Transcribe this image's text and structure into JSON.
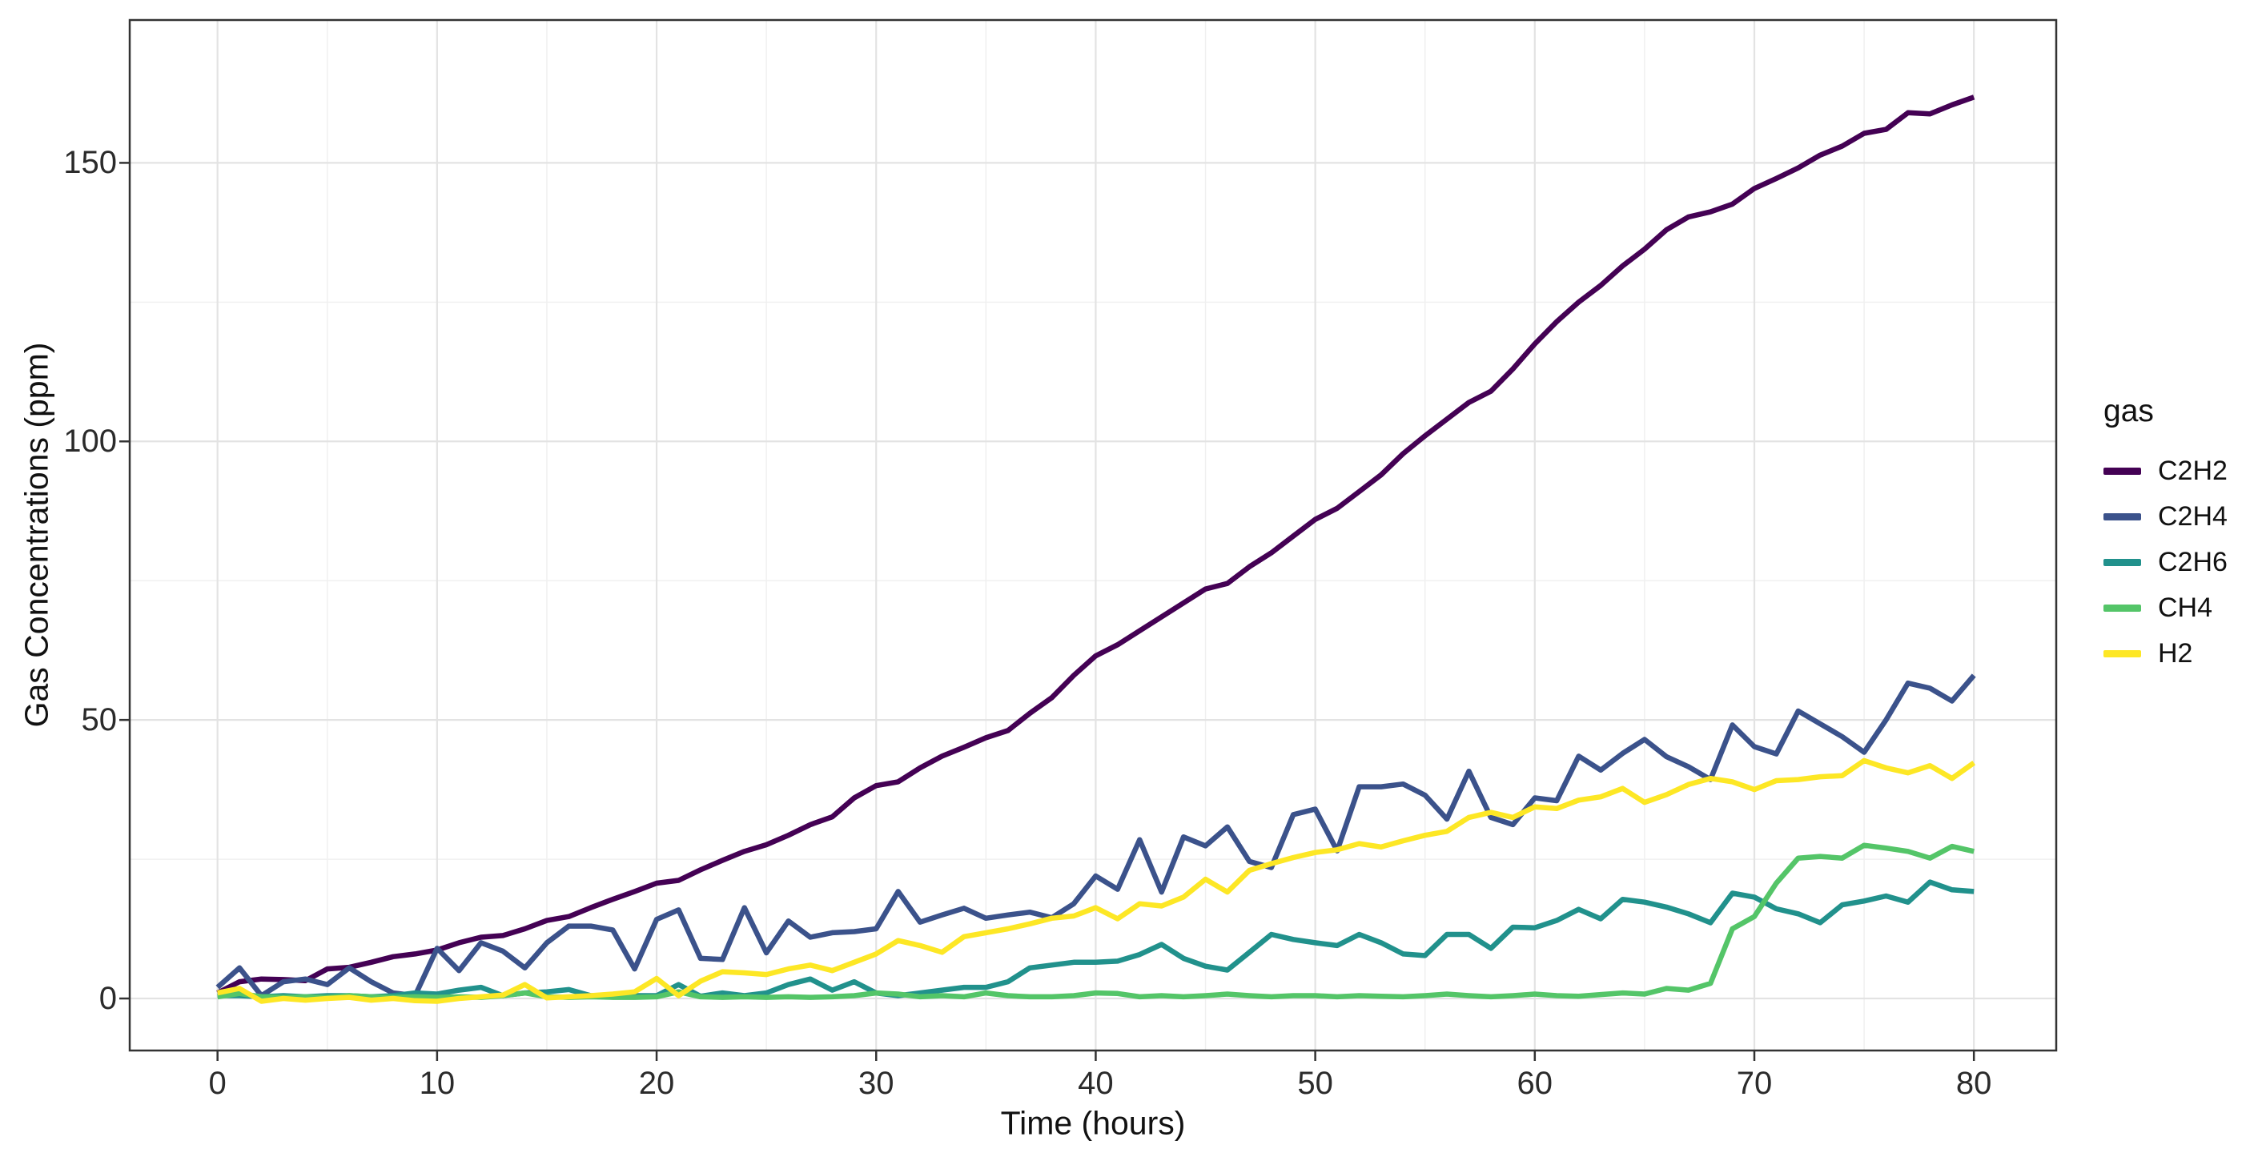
{
  "chart_data": {
    "type": "line",
    "title": "",
    "xlabel": "Time (hours)",
    "ylabel": "Gas Concentrations (ppm)",
    "legend_title": "gas",
    "legend_position": "right",
    "grid": "on",
    "x_ticks": [
      0,
      10,
      20,
      30,
      40,
      50,
      60,
      70,
      80
    ],
    "x_minor_ticks": [
      5,
      15,
      25,
      35,
      45,
      55,
      65,
      75
    ],
    "y_ticks": [
      0,
      50,
      100,
      150
    ],
    "y_minor_ticks": [
      25,
      75,
      125
    ],
    "xlim": [
      -4,
      83.75
    ],
    "ylim": [
      -9.34,
      175.64
    ],
    "x": [
      0,
      1,
      2,
      3,
      4,
      5,
      6,
      7,
      8,
      9,
      10,
      11,
      12,
      13,
      14,
      15,
      16,
      17,
      18,
      19,
      20,
      21,
      22,
      23,
      24,
      25,
      26,
      27,
      28,
      29,
      30,
      31,
      32,
      33,
      34,
      35,
      36,
      37,
      38,
      39,
      40,
      41,
      42,
      43,
      44,
      45,
      46,
      47,
      48,
      49,
      50,
      51,
      52,
      53,
      54,
      55,
      56,
      57,
      58,
      59,
      60,
      61,
      62,
      63,
      64,
      65,
      66,
      67,
      68,
      69,
      70,
      71,
      72,
      73,
      74,
      75,
      76,
      77,
      78,
      79,
      80
    ],
    "series": [
      {
        "name": "C2H2",
        "color": "#440154",
        "values": [
          1,
          3,
          3.5,
          3.4,
          3.2,
          5.3,
          5.6,
          6.5,
          7.5,
          8,
          8.7,
          10,
          11,
          11.3,
          12.5,
          14,
          14.7,
          16.3,
          17.8,
          19.2,
          20.7,
          21.2,
          23.1,
          24.8,
          26.4,
          27.6,
          29.3,
          31.2,
          32.6,
          36,
          38.2,
          38.9,
          41.4,
          43.5,
          45.1,
          46.8,
          48.1,
          51.2,
          54,
          58,
          61.5,
          63.5,
          66,
          68.5,
          71,
          73.5,
          74.5,
          77.5,
          80,
          83,
          86,
          88,
          91,
          94,
          97.8,
          101,
          104,
          107,
          109,
          113,
          117.5,
          121.5,
          125,
          128,
          131.5,
          134.5,
          138,
          140.3,
          141.2,
          142.6,
          145.4,
          147.2,
          149.1,
          151.4,
          153,
          155.3,
          156,
          159,
          158.8,
          160.4,
          161.8
        ]
      },
      {
        "name": "C2H4",
        "color": "#3B528B",
        "values": [
          2,
          5.5,
          0.5,
          3,
          3.5,
          2.5,
          5.5,
          3,
          1,
          0.5,
          9,
          5,
          10,
          8.5,
          5.5,
          10,
          13,
          13,
          12.3,
          5.3,
          14.2,
          15.9,
          7.2,
          7,
          16.3,
          8.2,
          13.9,
          11,
          11.8,
          12,
          12.5,
          19.2,
          13.7,
          15,
          16.2,
          14.4,
          15,
          15.5,
          14.5,
          17,
          22,
          19.6,
          28.5,
          19.1,
          29,
          27.4,
          30.8,
          24.6,
          23.5,
          33,
          34,
          26.5,
          38,
          38,
          38.5,
          36.5,
          32.2,
          40.8,
          32.5,
          31.2,
          36,
          35.5,
          43.5,
          41,
          44,
          46.5,
          43.4,
          41.6,
          39.3,
          49.1,
          45.2,
          43.9,
          51.6,
          49.3,
          47,
          44.2,
          50,
          56.6,
          55.7,
          53.4,
          58
        ]
      },
      {
        "name": "C2H6",
        "color": "#21918C",
        "values": [
          0.5,
          0.5,
          0.3,
          0.5,
          0.3,
          0.5,
          0.5,
          0.3,
          0.5,
          1,
          0.8,
          1.5,
          2,
          0.5,
          1,
          1.2,
          1.6,
          0.5,
          0.5,
          0.5,
          0.5,
          2.5,
          0.4,
          1,
          0.5,
          1,
          2.5,
          3.5,
          1.5,
          3,
          1,
          0.5,
          1,
          1.5,
          2,
          2,
          3,
          5.5,
          6,
          6.5,
          6.5,
          6.7,
          7.9,
          9.7,
          7.2,
          5.8,
          5.1,
          8.3,
          11.5,
          10.6,
          10,
          9.5,
          11.5,
          10,
          8,
          7.7,
          11.5,
          11.5,
          9,
          12.8,
          12.7,
          14,
          16,
          14.3,
          17.8,
          17.3,
          16.4,
          15.2,
          13.6,
          18.9,
          18.2,
          16.1,
          15.2,
          13.6,
          16.8,
          17.5,
          18.4,
          17.3,
          20.9,
          19.5,
          19.2
        ]
      },
      {
        "name": "CH4",
        "color": "#54C568",
        "values": [
          0.3,
          0.9,
          0.3,
          0.2,
          0.3,
          0.2,
          0.5,
          0.3,
          0.2,
          0.3,
          0.2,
          0.3,
          0.2,
          0.5,
          1,
          0.3,
          0.2,
          0.3,
          0.2,
          0.2,
          0.3,
          1.2,
          0.3,
          0.2,
          0.3,
          0.2,
          0.3,
          0.2,
          0.3,
          0.5,
          1,
          0.8,
          0.3,
          0.5,
          0.3,
          1,
          0.5,
          0.3,
          0.3,
          0.5,
          1,
          0.9,
          0.3,
          0.5,
          0.3,
          0.5,
          0.8,
          0.5,
          0.3,
          0.5,
          0.5,
          0.3,
          0.5,
          0.4,
          0.3,
          0.5,
          0.8,
          0.5,
          0.3,
          0.5,
          0.8,
          0.5,
          0.4,
          0.7,
          1,
          0.8,
          1.8,
          1.5,
          2.7,
          12.5,
          14.7,
          20.7,
          25.2,
          25.5,
          25.2,
          27.5,
          27,
          26.4,
          25.2,
          27.3,
          26.4
        ]
      },
      {
        "name": "H2",
        "color": "#FDE725",
        "values": [
          1,
          1.8,
          -0.5,
          0,
          -0.3,
          0,
          0.2,
          -0.3,
          0,
          -0.4,
          -0.5,
          0,
          0.3,
          0.6,
          2.5,
          0.1,
          0.3,
          0.5,
          0.8,
          1.2,
          3.6,
          0.5,
          3.1,
          4.8,
          4.6,
          4.3,
          5.3,
          6,
          5,
          6.5,
          8,
          10.4,
          9.5,
          8.3,
          11.1,
          11.8,
          12.5,
          13.4,
          14.4,
          14.8,
          16.3,
          14.3,
          17,
          16.6,
          18.2,
          21.4,
          19.1,
          23,
          24.2,
          25.3,
          26.2,
          26.7,
          27.8,
          27.2,
          28.3,
          29.3,
          30,
          32.5,
          33.4,
          32.5,
          34.4,
          34.1,
          35.6,
          36.2,
          37.7,
          35.2,
          36.6,
          38.4,
          39.5,
          38.9,
          37.5,
          39.1,
          39.3,
          39.8,
          40,
          42.7,
          41.4,
          40.5,
          41.8,
          39.5,
          42.3
        ]
      }
    ],
    "style": {
      "panel_border_color": "#333333",
      "major_grid_color": "#E3E3E3",
      "minor_grid_color": "#F0F0F0",
      "tick_color": "#333333",
      "line_width": 6.5
    }
  }
}
